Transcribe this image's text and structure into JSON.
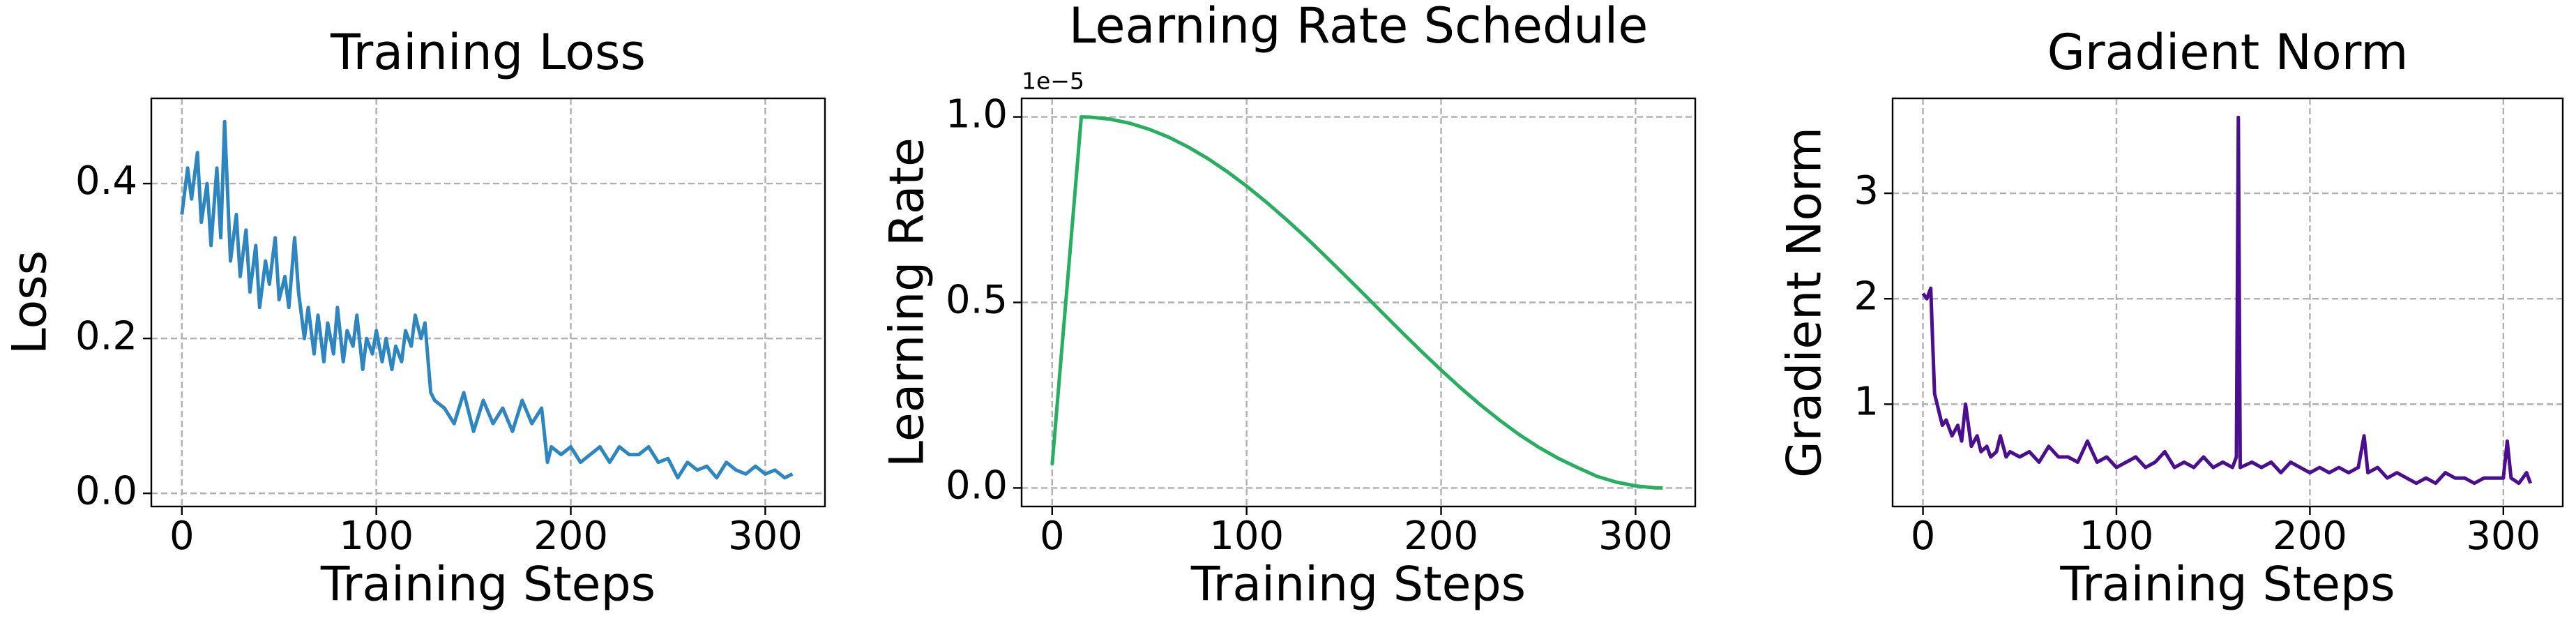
{
  "chart_data": [
    {
      "type": "line",
      "title": "Training Loss",
      "xlabel": "Training Steps",
      "ylabel": "Loss",
      "color": "#2e86c1",
      "x": [
        0,
        3,
        5,
        8,
        10,
        13,
        15,
        18,
        20,
        22,
        25,
        28,
        30,
        33,
        35,
        38,
        40,
        43,
        45,
        48,
        50,
        53,
        55,
        58,
        60,
        63,
        65,
        68,
        70,
        73,
        75,
        78,
        80,
        83,
        85,
        88,
        90,
        93,
        95,
        98,
        100,
        103,
        105,
        108,
        110,
        113,
        115,
        118,
        120,
        123,
        125,
        128,
        130,
        135,
        140,
        145,
        150,
        155,
        160,
        165,
        170,
        175,
        180,
        185,
        188,
        190,
        195,
        200,
        205,
        210,
        215,
        220,
        225,
        230,
        235,
        240,
        245,
        250,
        255,
        260,
        265,
        270,
        275,
        280,
        285,
        290,
        295,
        300,
        305,
        310,
        314
      ],
      "values": [
        0.36,
        0.42,
        0.38,
        0.44,
        0.35,
        0.4,
        0.32,
        0.42,
        0.33,
        0.48,
        0.3,
        0.36,
        0.28,
        0.34,
        0.26,
        0.32,
        0.24,
        0.3,
        0.27,
        0.33,
        0.25,
        0.28,
        0.24,
        0.33,
        0.26,
        0.2,
        0.24,
        0.18,
        0.23,
        0.17,
        0.22,
        0.18,
        0.24,
        0.17,
        0.21,
        0.19,
        0.23,
        0.16,
        0.2,
        0.18,
        0.21,
        0.17,
        0.2,
        0.16,
        0.19,
        0.17,
        0.21,
        0.19,
        0.23,
        0.2,
        0.22,
        0.13,
        0.12,
        0.11,
        0.09,
        0.13,
        0.08,
        0.12,
        0.09,
        0.11,
        0.08,
        0.12,
        0.09,
        0.11,
        0.04,
        0.06,
        0.05,
        0.06,
        0.04,
        0.05,
        0.06,
        0.04,
        0.06,
        0.05,
        0.05,
        0.06,
        0.04,
        0.045,
        0.02,
        0.04,
        0.03,
        0.035,
        0.02,
        0.04,
        0.03,
        0.025,
        0.035,
        0.025,
        0.03,
        0.02,
        0.025
      ],
      "xlim": [
        -15.7,
        330.7
      ],
      "xticks": [
        0,
        100,
        200,
        300
      ],
      "ylim": [
        -0.017,
        0.51
      ],
      "yticks": [
        {
          "value": 0,
          "label": "0.0"
        },
        0.2,
        0.4
      ],
      "grid": true
    },
    {
      "type": "line",
      "title": "Learning Rate Schedule",
      "xlabel": "Training Steps",
      "ylabel": "Learning Rate",
      "color": "#27ae60",
      "offset_label": "1e−5",
      "x": [
        0,
        5,
        10,
        15,
        20,
        30,
        40,
        50,
        60,
        70,
        80,
        90,
        100,
        110,
        120,
        130,
        140,
        150,
        160,
        170,
        180,
        190,
        200,
        210,
        220,
        230,
        240,
        250,
        260,
        270,
        280,
        290,
        300,
        310,
        314
      ],
      "values": [
        0.0625,
        0.375,
        0.6875,
        1.0,
        0.9993,
        0.9938,
        0.9828,
        0.9666,
        0.9452,
        0.9188,
        0.8879,
        0.8526,
        0.8135,
        0.771,
        0.7255,
        0.6776,
        0.6273,
        0.5758,
        0.5236,
        0.4711,
        0.4189,
        0.3676,
        0.3178,
        0.27,
        0.2249,
        0.1829,
        0.1445,
        0.1102,
        0.0805,
        0.0553,
        0.0316,
        0.0158,
        0.0054,
        0.0004,
        0
      ],
      "xlim": [
        -15.7,
        330.7
      ],
      "xticks": [
        0,
        100,
        200,
        300
      ],
      "ylim": [
        -0.05,
        1.05
      ],
      "yticks": [
        {
          "value": 0,
          "label": "0.0"
        },
        0.5,
        {
          "value": 1,
          "label": "1.0"
        }
      ],
      "grid": true
    },
    {
      "type": "line",
      "title": "Gradient Norm",
      "xlabel": "Training Steps",
      "ylabel": "Gradient Norm",
      "color": "#4a0e8f",
      "x": [
        0,
        2,
        4,
        5,
        6,
        8,
        10,
        12,
        15,
        18,
        20,
        22,
        25,
        28,
        30,
        33,
        35,
        38,
        40,
        43,
        45,
        50,
        55,
        60,
        65,
        70,
        75,
        80,
        85,
        90,
        95,
        100,
        105,
        110,
        115,
        120,
        125,
        130,
        135,
        140,
        145,
        150,
        155,
        160,
        162,
        163,
        164,
        170,
        175,
        180,
        185,
        190,
        195,
        200,
        205,
        210,
        215,
        220,
        225,
        228,
        230,
        235,
        240,
        245,
        250,
        255,
        260,
        265,
        270,
        275,
        280,
        285,
        290,
        295,
        300,
        302,
        304,
        308,
        310,
        312,
        314
      ],
      "values": [
        2.05,
        2.0,
        2.1,
        1.6,
        1.1,
        0.95,
        0.8,
        0.85,
        0.7,
        0.8,
        0.65,
        1.0,
        0.6,
        0.7,
        0.55,
        0.6,
        0.5,
        0.55,
        0.7,
        0.5,
        0.55,
        0.5,
        0.55,
        0.45,
        0.6,
        0.5,
        0.5,
        0.45,
        0.65,
        0.45,
        0.5,
        0.4,
        0.45,
        0.5,
        0.4,
        0.45,
        0.55,
        0.4,
        0.45,
        0.4,
        0.5,
        0.4,
        0.45,
        0.4,
        0.5,
        3.72,
        0.4,
        0.45,
        0.4,
        0.45,
        0.35,
        0.45,
        0.4,
        0.35,
        0.4,
        0.35,
        0.4,
        0.35,
        0.4,
        0.7,
        0.35,
        0.4,
        0.3,
        0.35,
        0.3,
        0.25,
        0.3,
        0.25,
        0.35,
        0.3,
        0.3,
        0.25,
        0.3,
        0.3,
        0.3,
        0.65,
        0.3,
        0.25,
        0.3,
        0.35,
        0.25
      ],
      "xlim": [
        -15.7,
        330.7
      ],
      "xticks": [
        0,
        100,
        200,
        300
      ],
      "ylim": [
        0.03,
        3.9
      ],
      "yticks": [
        1,
        2,
        3
      ],
      "grid": true
    }
  ]
}
